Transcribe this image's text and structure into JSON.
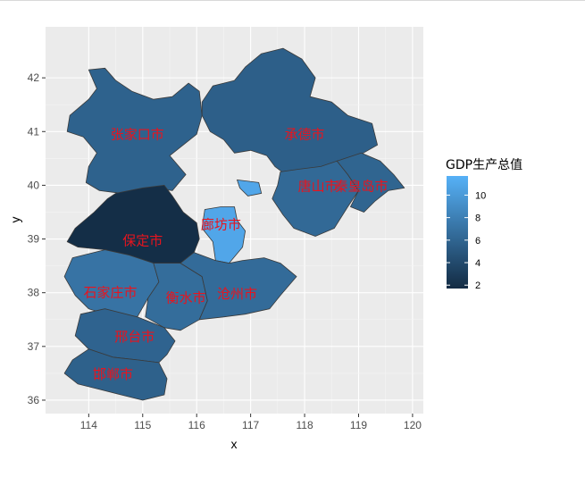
{
  "chart_data": {
    "type": "choropleth",
    "xlabel": "x",
    "ylabel": "y",
    "xlim": [
      113.2,
      120.2
    ],
    "ylim": [
      35.75,
      42.95
    ],
    "x_ticks": [
      "114",
      "115",
      "116",
      "117",
      "118",
      "119",
      "120"
    ],
    "y_ticks": [
      "36",
      "37",
      "38",
      "39",
      "40",
      "41",
      "42"
    ],
    "grid": true,
    "legend": {
      "title": "GDP生产总值",
      "placement": "right",
      "range": [
        1.7,
        11.7
      ],
      "ticks": [
        "2",
        "4",
        "6",
        "8",
        "10"
      ],
      "color_low": "#132b43",
      "color_high": "#56b1f7"
    },
    "regions": [
      {
        "name": "张家口市",
        "value": 5.8,
        "label_at": [
          114.9,
          40.95
        ]
      },
      {
        "name": "承德市",
        "value": 5.6,
        "label_at": [
          118.0,
          40.95
        ]
      },
      {
        "name": "唐山市",
        "value": 6.3,
        "label_at": [
          118.25,
          39.98
        ]
      },
      {
        "name": "秦皇岛市",
        "value": 6.0,
        "label_at": [
          119.05,
          39.98
        ]
      },
      {
        "name": "保定市",
        "value": 1.9,
        "label_at": [
          115.0,
          38.97
        ]
      },
      {
        "name": "廊坊市",
        "value": 10.9,
        "label_at": [
          116.45,
          39.27
        ]
      },
      {
        "name": "石家庄市",
        "value": 7.1,
        "label_at": [
          114.4,
          38.0
        ]
      },
      {
        "name": "衡水市",
        "value": 6.6,
        "label_at": [
          115.8,
          37.9
        ]
      },
      {
        "name": "沧州市",
        "value": 6.5,
        "label_at": [
          116.75,
          37.98
        ]
      },
      {
        "name": "邢台市",
        "value": 5.9,
        "label_at": [
          114.85,
          37.18
        ]
      },
      {
        "name": "邯郸市",
        "value": 5.7,
        "label_at": [
          114.45,
          36.48
        ]
      }
    ]
  }
}
